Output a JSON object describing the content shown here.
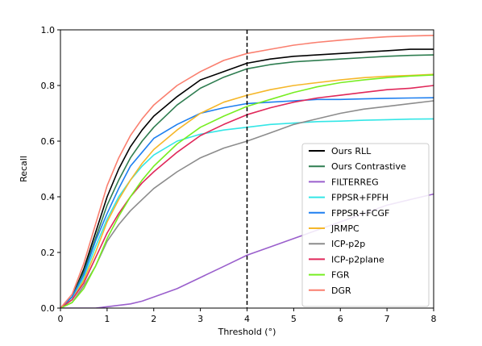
{
  "chart_data": {
    "type": "line",
    "xlabel": "Threshold (°)",
    "ylabel": "Recall",
    "xlim": [
      0,
      8
    ],
    "ylim": [
      0,
      1.0
    ],
    "xticks": [
      0,
      1,
      2,
      3,
      4,
      5,
      6,
      7,
      8
    ],
    "yticks": [
      0.0,
      0.2,
      0.4,
      0.6,
      0.8,
      1.0
    ],
    "xtick_labels": [
      "0",
      "1",
      "2",
      "3",
      "4",
      "5",
      "6",
      "7",
      "8"
    ],
    "ytick_labels": [
      "0.0",
      "0.2",
      "0.4",
      "0.6",
      "0.8",
      "1.0"
    ],
    "grid": false,
    "legend_position": "lower-right",
    "reference_line": {
      "x": 4,
      "style": "dashed",
      "color": "#000000"
    },
    "x": [
      0,
      0.25,
      0.5,
      0.75,
      1,
      1.25,
      1.5,
      1.75,
      2,
      2.5,
      3,
      3.5,
      4,
      4.5,
      5,
      5.5,
      6,
      6.5,
      7,
      7.5,
      8
    ],
    "series": [
      {
        "name": "Ours RLL",
        "color": "#000000",
        "values": [
          0,
          0.04,
          0.14,
          0.27,
          0.4,
          0.5,
          0.58,
          0.64,
          0.69,
          0.76,
          0.82,
          0.85,
          0.88,
          0.895,
          0.905,
          0.91,
          0.915,
          0.92,
          0.925,
          0.93,
          0.93
        ]
      },
      {
        "name": "Ours Contrastive",
        "color": "#2e7d50",
        "values": [
          0,
          0.04,
          0.13,
          0.25,
          0.37,
          0.46,
          0.54,
          0.6,
          0.65,
          0.73,
          0.79,
          0.83,
          0.86,
          0.875,
          0.885,
          0.89,
          0.895,
          0.9,
          0.905,
          0.908,
          0.91
        ]
      },
      {
        "name": "FILTERREG",
        "color": "#9a5fcc",
        "values": [
          0,
          0,
          0,
          0,
          0.005,
          0.01,
          0.015,
          0.025,
          0.04,
          0.07,
          0.11,
          0.15,
          0.19,
          0.22,
          0.25,
          0.28,
          0.31,
          0.34,
          0.37,
          0.39,
          0.41
        ]
      },
      {
        "name": "FPPSR+FPFH",
        "color": "#33e6e6",
        "values": [
          0,
          0.03,
          0.11,
          0.22,
          0.32,
          0.4,
          0.46,
          0.51,
          0.55,
          0.6,
          0.625,
          0.64,
          0.65,
          0.66,
          0.665,
          0.67,
          0.672,
          0.675,
          0.677,
          0.679,
          0.68
        ]
      },
      {
        "name": "FPPSR+FCGF",
        "color": "#1e7ff0",
        "values": [
          0,
          0.04,
          0.12,
          0.24,
          0.34,
          0.43,
          0.51,
          0.56,
          0.61,
          0.66,
          0.7,
          0.72,
          0.735,
          0.74,
          0.745,
          0.75,
          0.75,
          0.752,
          0.754,
          0.755,
          0.756
        ]
      },
      {
        "name": "JRMPC",
        "color": "#f5b72a",
        "values": [
          0,
          0.03,
          0.1,
          0.2,
          0.31,
          0.39,
          0.46,
          0.52,
          0.57,
          0.64,
          0.7,
          0.74,
          0.765,
          0.785,
          0.8,
          0.81,
          0.82,
          0.828,
          0.833,
          0.836,
          0.84
        ]
      },
      {
        "name": "ICP-p2p",
        "color": "#8c8c8c",
        "values": [
          0,
          0.02,
          0.08,
          0.15,
          0.24,
          0.3,
          0.35,
          0.39,
          0.43,
          0.49,
          0.54,
          0.575,
          0.6,
          0.63,
          0.66,
          0.68,
          0.7,
          0.715,
          0.725,
          0.735,
          0.745
        ]
      },
      {
        "name": "ICP-p2plane",
        "color": "#e0285a",
        "values": [
          0,
          0.03,
          0.09,
          0.18,
          0.27,
          0.34,
          0.4,
          0.45,
          0.49,
          0.56,
          0.62,
          0.66,
          0.695,
          0.72,
          0.74,
          0.755,
          0.765,
          0.775,
          0.785,
          0.79,
          0.8
        ]
      },
      {
        "name": "FGR",
        "color": "#77ee22",
        "values": [
          0,
          0.02,
          0.07,
          0.15,
          0.25,
          0.33,
          0.4,
          0.46,
          0.51,
          0.59,
          0.65,
          0.69,
          0.725,
          0.75,
          0.775,
          0.795,
          0.81,
          0.82,
          0.828,
          0.834,
          0.838
        ]
      },
      {
        "name": "DGR",
        "color": "#fa7f6f",
        "values": [
          0,
          0.05,
          0.16,
          0.3,
          0.44,
          0.54,
          0.62,
          0.68,
          0.73,
          0.8,
          0.85,
          0.89,
          0.915,
          0.93,
          0.945,
          0.955,
          0.963,
          0.97,
          0.975,
          0.978,
          0.98
        ]
      }
    ]
  }
}
